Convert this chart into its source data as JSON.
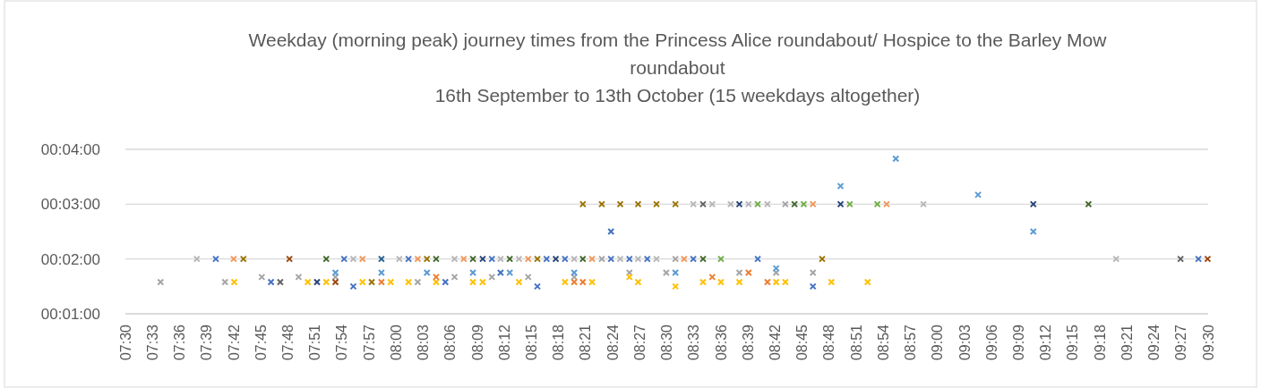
{
  "chart_data": {
    "type": "scatter",
    "title": "Weekday (morning peak)  journey times from the Princess Alice roundabout/ Hospice to the Barley Mow roundabout",
    "subtitle": "16th September to 13th October (15 weekdays altogether)",
    "marker": "cross",
    "grid": "y",
    "xlim": [
      7.5,
      9.5
    ],
    "xticks": [
      {
        "value": 7.5,
        "label": "07:30"
      },
      {
        "value": 7.55,
        "label": "07:33"
      },
      {
        "value": 7.6,
        "label": "07:36"
      },
      {
        "value": 7.65,
        "label": "07:39"
      },
      {
        "value": 7.7,
        "label": "07:42"
      },
      {
        "value": 7.75,
        "label": "07:45"
      },
      {
        "value": 7.8,
        "label": "07:48"
      },
      {
        "value": 7.85,
        "label": "07:51"
      },
      {
        "value": 7.9,
        "label": "07:54"
      },
      {
        "value": 7.95,
        "label": "07:57"
      },
      {
        "value": 8.0,
        "label": "08:00"
      },
      {
        "value": 8.05,
        "label": "08:03"
      },
      {
        "value": 8.1,
        "label": "08:06"
      },
      {
        "value": 8.15,
        "label": "08:09"
      },
      {
        "value": 8.2,
        "label": "08:12"
      },
      {
        "value": 8.25,
        "label": "08:15"
      },
      {
        "value": 8.3,
        "label": "08:18"
      },
      {
        "value": 8.35,
        "label": "08:21"
      },
      {
        "value": 8.4,
        "label": "08:24"
      },
      {
        "value": 8.45,
        "label": "08:27"
      },
      {
        "value": 8.5,
        "label": "08:30"
      },
      {
        "value": 8.55,
        "label": "08:33"
      },
      {
        "value": 8.6,
        "label": "08:36"
      },
      {
        "value": 8.65,
        "label": "08:39"
      },
      {
        "value": 8.7,
        "label": "08:42"
      },
      {
        "value": 8.75,
        "label": "08:45"
      },
      {
        "value": 8.8,
        "label": "08:48"
      },
      {
        "value": 8.85,
        "label": "08:51"
      },
      {
        "value": 8.9,
        "label": "08:54"
      },
      {
        "value": 8.95,
        "label": "08:57"
      },
      {
        "value": 9.0,
        "label": "09:00"
      },
      {
        "value": 9.05,
        "label": "09:03"
      },
      {
        "value": 9.1,
        "label": "09:06"
      },
      {
        "value": 9.15,
        "label": "09:09"
      },
      {
        "value": 9.2,
        "label": "09:12"
      },
      {
        "value": 9.25,
        "label": "09:15"
      },
      {
        "value": 9.3,
        "label": "09:18"
      },
      {
        "value": 9.35,
        "label": "09:21"
      },
      {
        "value": 9.4,
        "label": "09:24"
      },
      {
        "value": 9.45,
        "label": "09:27"
      },
      {
        "value": 9.5,
        "label": "09:30"
      }
    ],
    "ylim": [
      1,
      4
    ],
    "yticks": [
      {
        "value": 1,
        "label": "00:01:00"
      },
      {
        "value": 2,
        "label": "00:02:00"
      },
      {
        "value": 3,
        "label": "00:03:00"
      },
      {
        "value": 4,
        "label": "00:04:00"
      }
    ],
    "series": [
      {
        "color": "#a5a5a5",
        "x": [
          7.565,
          7.684,
          7.752,
          7.82,
          7.888,
          8.04,
          8.108,
          8.177,
          8.244,
          8.329,
          8.38,
          8.431,
          8.499,
          8.516,
          8.634,
          8.702,
          8.719,
          8.77
        ],
        "values": [
          1.58,
          1.58,
          1.67,
          1.67,
          1.67,
          1.58,
          1.67,
          1.67,
          1.67,
          1.67,
          2,
          1.75,
          1.75,
          2,
          1.75,
          1.75,
          3,
          1.75
        ]
      },
      {
        "color": "#b7b7b7",
        "x": [
          7.632,
          7.921,
          8.006,
          8.108,
          8.193,
          8.227,
          8.329,
          8.414,
          8.447,
          8.481,
          8.549,
          8.584,
          8.618,
          8.651,
          8.686,
          8.974,
          9.33
        ],
        "values": [
          2,
          2,
          2,
          2,
          2,
          2,
          2,
          2,
          2,
          2,
          3,
          3,
          3,
          3,
          3,
          3,
          2
        ]
      },
      {
        "color": "#4472c4",
        "x": [
          7.667,
          7.769,
          7.904,
          7.921,
          8.023,
          8.091,
          8.177,
          8.193,
          8.261,
          8.278,
          8.312,
          8.397,
          8.397,
          8.431,
          8.464,
          8.549,
          8.668,
          8.77,
          9.482
        ],
        "values": [
          2,
          1.58,
          2,
          1.5,
          2,
          1.58,
          2,
          1.75,
          1.5,
          2,
          2,
          2.5,
          2,
          2,
          2,
          2,
          2,
          1.5,
          2
        ]
      },
      {
        "color": "#f1975a",
        "x": [
          7.7,
          7.938,
          8.04,
          8.125,
          8.244,
          8.362,
          8.532,
          8.77,
          8.906
        ],
        "values": [
          2,
          2,
          2,
          2,
          2,
          2,
          2,
          3,
          3
        ]
      },
      {
        "color": "#997300",
        "x": [
          7.718,
          7.955,
          8.057,
          8.261,
          8.345,
          8.38,
          8.414,
          8.447,
          8.481,
          8.516,
          8.787
        ],
        "values": [
          2,
          1.58,
          2,
          2,
          3,
          3,
          3,
          3,
          3,
          3,
          2
        ]
      },
      {
        "color": "#ffc000",
        "x": [
          7.701,
          7.837,
          7.871,
          7.938,
          7.99,
          8.023,
          8.074,
          8.142,
          8.16,
          8.227,
          8.312,
          8.362,
          8.431,
          8.447,
          8.516,
          8.567,
          8.6,
          8.634,
          8.702,
          8.719,
          8.804,
          8.871
        ],
        "values": [
          1.58,
          1.58,
          1.58,
          1.58,
          1.58,
          1.58,
          1.58,
          1.58,
          1.58,
          1.58,
          1.58,
          1.58,
          1.67,
          1.58,
          1.5,
          1.58,
          1.58,
          1.58,
          1.58,
          1.58,
          1.58,
          1.58
        ]
      },
      {
        "color": "#636363",
        "x": [
          7.786,
          8.567,
          9.449
        ],
        "values": [
          1.58,
          3,
          2
        ]
      },
      {
        "color": "#9e480e",
        "x": [
          7.803,
          7.888,
          9.499
        ],
        "values": [
          2,
          1.58,
          2
        ]
      },
      {
        "color": "#264478",
        "x": [
          7.854,
          8.16,
          8.295,
          8.634,
          8.821,
          9.177
        ],
        "values": [
          1.58,
          2,
          2,
          3,
          3,
          3
        ]
      },
      {
        "color": "#43682b",
        "x": [
          7.871,
          8.074,
          8.142,
          8.21,
          8.345,
          8.567,
          8.736,
          9.279
        ],
        "values": [
          2,
          2,
          2,
          2,
          2,
          2,
          3,
          3
        ]
      },
      {
        "color": "#5b9bd5",
        "x": [
          7.888,
          7.973,
          8.057,
          8.142,
          8.21,
          8.329,
          8.516,
          8.702,
          8.821,
          8.923,
          9.075,
          9.177
        ],
        "values": [
          1.75,
          1.75,
          1.75,
          1.75,
          1.75,
          1.75,
          1.75,
          1.83,
          3.33,
          3.83,
          3.17,
          2.5
        ]
      },
      {
        "color": "#255e91",
        "x": [
          7.973
        ],
        "values": [
          2
        ]
      },
      {
        "color": "#ed7d31",
        "x": [
          7.973,
          8.074,
          8.329,
          8.345,
          8.584,
          8.651,
          8.686
        ],
        "values": [
          1.58,
          1.67,
          1.58,
          1.58,
          1.67,
          1.75,
          1.58
        ]
      },
      {
        "color": "#70ad47",
        "x": [
          8.6,
          8.668,
          8.753,
          8.838,
          8.889
        ],
        "values": [
          2,
          3,
          3,
          3,
          3
        ]
      }
    ]
  }
}
